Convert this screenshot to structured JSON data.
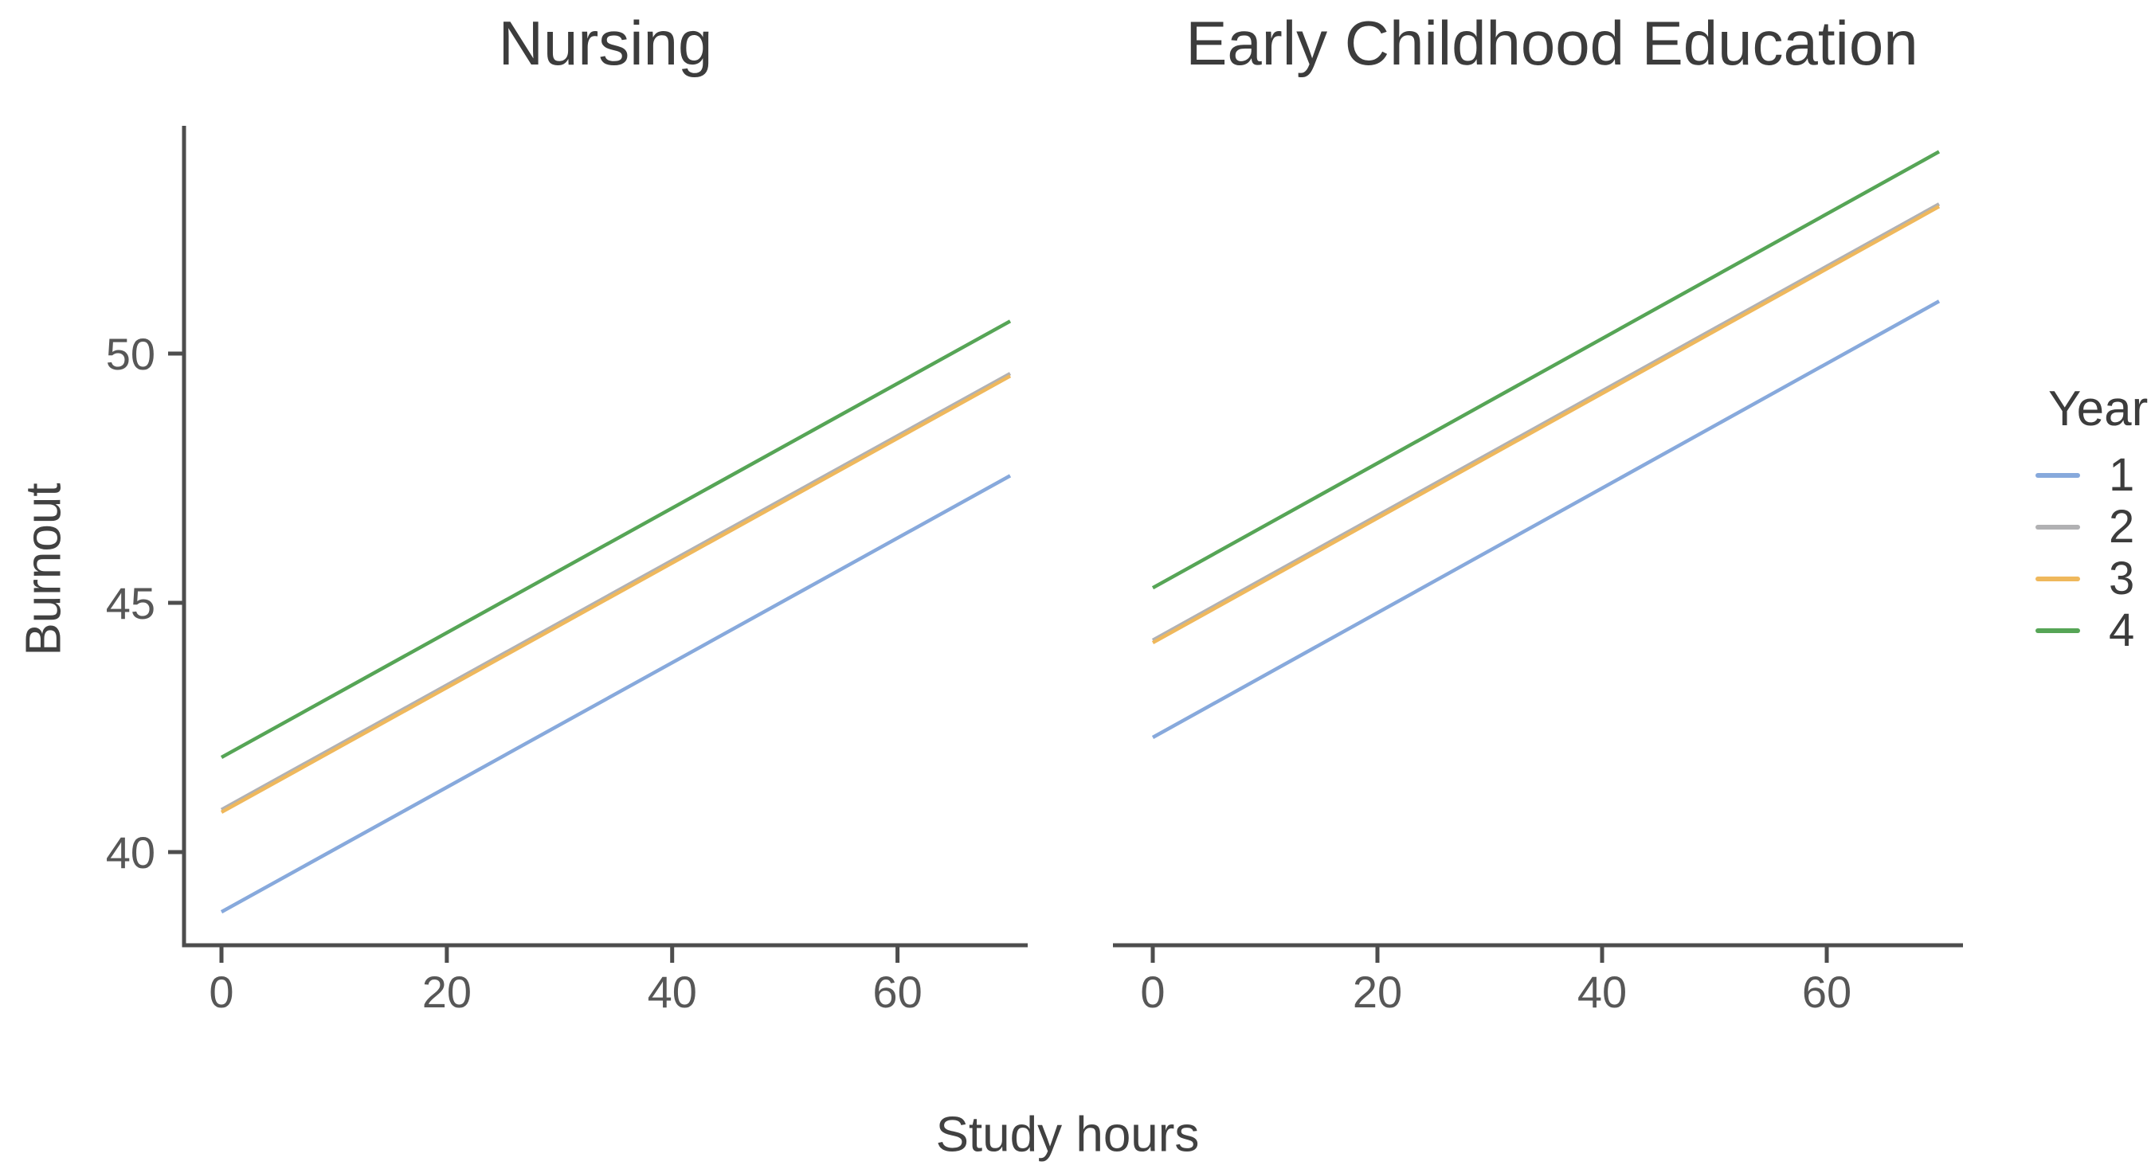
{
  "figure": {
    "background_color": "#ffffff",
    "axis_color": "#4d4d4d",
    "tick_label_color": "#575757",
    "title_color": "#3c3c3c"
  },
  "legend": {
    "title": "Year",
    "entries": [
      {
        "label": "1",
        "color": "#87A9DC"
      },
      {
        "label": "2",
        "color": "#B1B1B3"
      },
      {
        "label": "3",
        "color": "#EFB85C"
      },
      {
        "label": "4",
        "color": "#56A556"
      }
    ]
  },
  "chart_data": {
    "type": "line",
    "title": "",
    "xlabel": "Study hours",
    "ylabel": "Burnout",
    "x_ticks": [
      0,
      20,
      40,
      60
    ],
    "y_ticks": [
      40,
      45,
      50
    ],
    "x_drawn_range": [
      0,
      70
    ],
    "xlim": [
      -3.3,
      71.5
    ],
    "ylim": [
      38.1,
      54.5
    ],
    "grid": false,
    "legend_title": "Year",
    "legend_position": "right",
    "facets": [
      {
        "title": "Nursing",
        "series": [
          {
            "name": "1",
            "x": [
              0,
              70
            ],
            "y": [
              38.8,
              47.55
            ]
          },
          {
            "name": "2",
            "x": [
              0,
              70
            ],
            "y": [
              40.85,
              49.6
            ]
          },
          {
            "name": "3",
            "x": [
              0,
              70
            ],
            "y": [
              40.8,
              49.55
            ]
          },
          {
            "name": "4",
            "x": [
              0,
              70
            ],
            "y": [
              41.9,
              50.65
            ]
          }
        ]
      },
      {
        "title": "Early Childhood Education",
        "series": [
          {
            "name": "1",
            "x": [
              0,
              70
            ],
            "y": [
              42.3,
              51.05
            ]
          },
          {
            "name": "2",
            "x": [
              0,
              70
            ],
            "y": [
              44.25,
              53.0
            ]
          },
          {
            "name": "3",
            "x": [
              0,
              70
            ],
            "y": [
              44.2,
              52.95
            ]
          },
          {
            "name": "4",
            "x": [
              0,
              70
            ],
            "y": [
              45.3,
              54.05
            ]
          }
        ]
      }
    ]
  }
}
